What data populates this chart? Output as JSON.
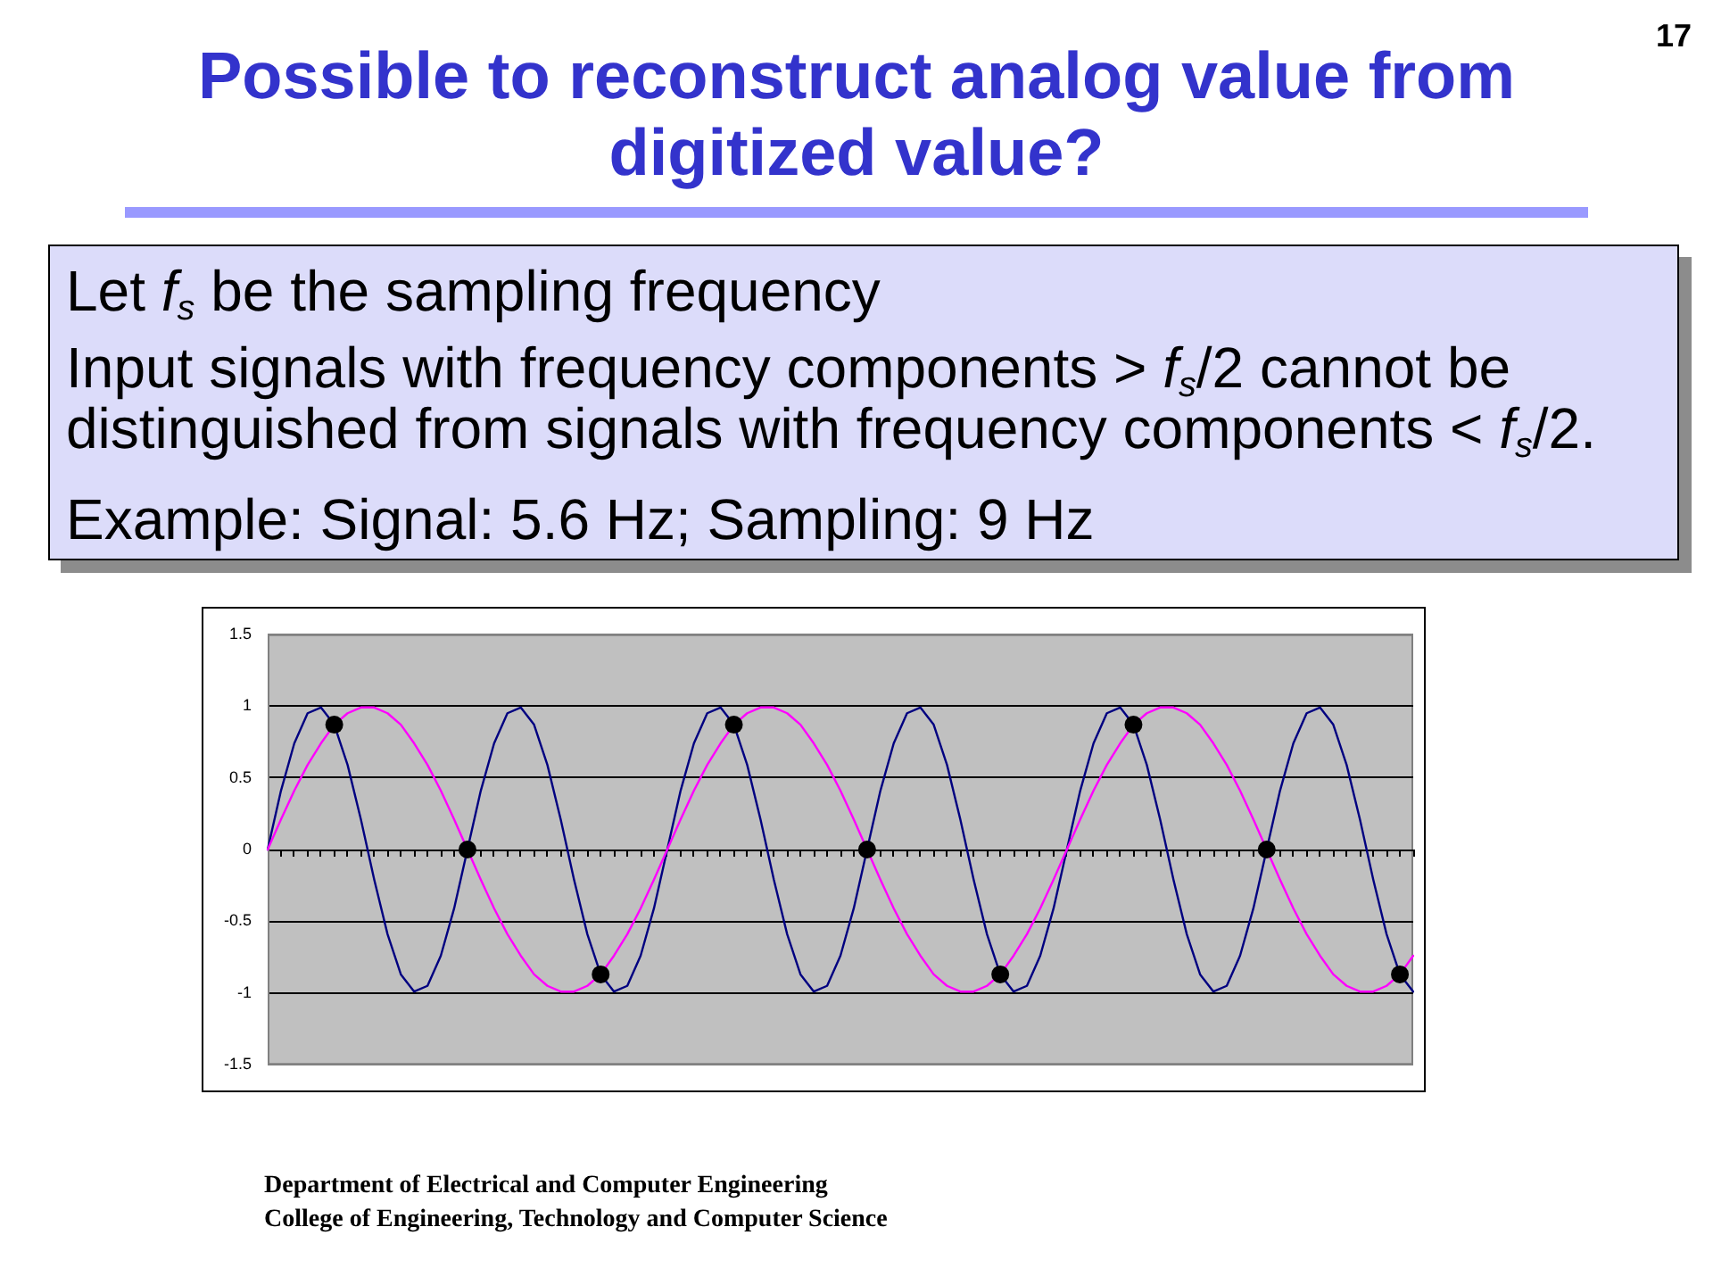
{
  "chart_data": {
    "type": "line",
    "title": "Possible to reconstruct analog value from digitized value?",
    "annotations": [
      "Let f$_{s}$ be the sampling frequency",
      "Input signals with frequency components > f$_{s}$/2 cannot be distinguished from signals with frequency components < f$_{s}$/2.",
      "Example:  Signal: 5.6 Hz; Sampling: 9 Hz",
      "Department of Electrical and Computer Engineering",
      "College of Engineering, Technology and Computer Science",
      "17"
    ],
    "categories": [
      null,
      null,
      null,
      null,
      null,
      null,
      null,
      null,
      null,
      null,
      null,
      null,
      null,
      null,
      null,
      null,
      null,
      null,
      null,
      null,
      null,
      null,
      null,
      null,
      null,
      null,
      null,
      null,
      null,
      null,
      null,
      null,
      null,
      null,
      null,
      null,
      null,
      null,
      null,
      null,
      null,
      null,
      null,
      null,
      null,
      null,
      null,
      null,
      null,
      null,
      null,
      null,
      null,
      null,
      null,
      null,
      null,
      null,
      null,
      null,
      null,
      null,
      null,
      null,
      null,
      null,
      null,
      null,
      null,
      null,
      null,
      null,
      null,
      null,
      null,
      null,
      null,
      null,
      null,
      null,
      null,
      null,
      null,
      null,
      null,
      null,
      null
    ],
    "series": [
      {
        "color": "#000080",
        "values": [
          0,
          0.41,
          0.74,
          0.95,
          0.99,
          0.87,
          0.59,
          0.21,
          -0.21,
          -0.59,
          -0.87,
          -0.99,
          -0.95,
          -0.74,
          -0.41,
          0,
          0.41,
          0.74,
          0.95,
          0.99,
          0.87,
          0.59,
          0.21,
          -0.21,
          -0.59,
          -0.87,
          -0.99,
          -0.95,
          -0.74,
          -0.41,
          0,
          0.41,
          0.74,
          0.95,
          0.99,
          0.87,
          0.59,
          0.21,
          -0.21,
          -0.59,
          -0.87,
          -0.99,
          -0.95,
          -0.74,
          -0.41,
          0,
          0.41,
          0.74,
          0.95,
          0.99,
          0.87,
          0.59,
          0.21,
          -0.21,
          -0.59,
          -0.87,
          -0.99,
          -0.95,
          -0.74,
          -0.41,
          0,
          0.41,
          0.74,
          0.95,
          0.99,
          0.87,
          0.59,
          0.21,
          -0.21,
          -0.59,
          -0.87,
          -0.99,
          -0.95,
          -0.74,
          -0.41,
          0,
          0.41,
          0.74,
          0.95,
          0.99,
          0.87,
          0.59,
          0.21,
          -0.21,
          -0.59,
          -0.87,
          -0.99
        ]
      },
      {
        "color": "#ff00ff",
        "values": [
          0,
          0.21,
          0.41,
          0.59,
          0.74,
          0.87,
          0.95,
          0.99,
          0.99,
          0.95,
          0.87,
          0.74,
          0.59,
          0.41,
          0.21,
          0,
          -0.21,
          -0.41,
          -0.59,
          -0.74,
          -0.87,
          -0.95,
          -0.99,
          -0.99,
          -0.95,
          -0.87,
          -0.74,
          -0.59,
          -0.41,
          -0.21,
          0,
          0.21,
          0.41,
          0.59,
          0.74,
          0.87,
          0.95,
          0.99,
          0.99,
          0.95,
          0.87,
          0.74,
          0.59,
          0.41,
          0.21,
          0,
          -0.21,
          -0.41,
          -0.59,
          -0.74,
          -0.87,
          -0.95,
          -0.99,
          -0.99,
          -0.95,
          -0.87,
          -0.74,
          -0.59,
          -0.41,
          -0.21,
          0,
          0.21,
          0.41,
          0.59,
          0.74,
          0.87,
          0.95,
          0.99,
          0.99,
          0.95,
          0.87,
          0.74,
          0.59,
          0.41,
          0.21,
          0,
          -0.21,
          -0.41,
          -0.59,
          -0.74,
          -0.87,
          -0.95,
          -0.99,
          -0.99,
          -0.95,
          -0.87,
          -0.74
        ]
      },
      {
        "type": "scatter",
        "marker": "circle",
        "color": "#000000",
        "values": [
          null,
          null,
          null,
          null,
          null,
          0.87,
          null,
          null,
          null,
          null,
          null,
          null,
          null,
          null,
          null,
          0,
          null,
          null,
          null,
          null,
          null,
          null,
          null,
          null,
          null,
          -0.87,
          null,
          null,
          null,
          null,
          null,
          null,
          null,
          null,
          null,
          0.87,
          null,
          null,
          null,
          null,
          null,
          null,
          null,
          null,
          null,
          0,
          null,
          null,
          null,
          null,
          null,
          null,
          null,
          null,
          null,
          -0.87,
          null,
          null,
          null,
          null,
          null,
          null,
          null,
          null,
          null,
          0.87,
          null,
          null,
          null,
          null,
          null,
          null,
          null,
          null,
          null,
          0,
          null,
          null,
          null,
          null,
          null,
          null,
          null,
          null,
          null,
          -0.87,
          null
        ]
      }
    ],
    "ylim": [
      -1.5,
      1.5
    ],
    "yticks": [
      -1.5,
      -1,
      -0.5,
      0,
      0.5,
      1,
      1.5
    ],
    "grid": "y"
  }
}
